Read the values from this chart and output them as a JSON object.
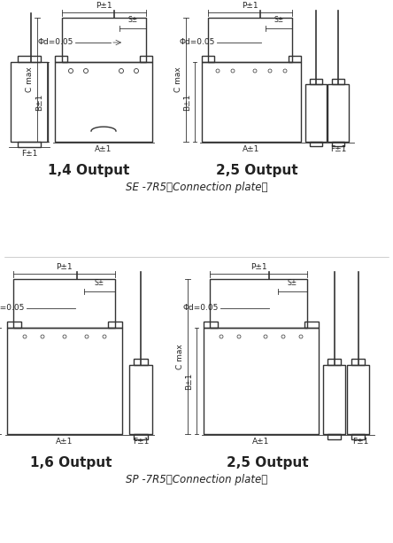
{
  "title_se": "SE -7R5（Connection plate）",
  "title_sp": "SP -7R5（Connection plate）",
  "label_14": "1,4 Output",
  "label_25_top": "2,5 Output",
  "label_16": "1,6 Output",
  "label_25_bot": "2,5 Output",
  "bg_color": "#ffffff",
  "line_color": "#333333",
  "dim_color": "#555555",
  "text_color": "#222222",
  "title_fontsize": 8.5,
  "label_fontsize": 11,
  "dim_fontsize": 6.5,
  "annot_fontsize": 6.5
}
